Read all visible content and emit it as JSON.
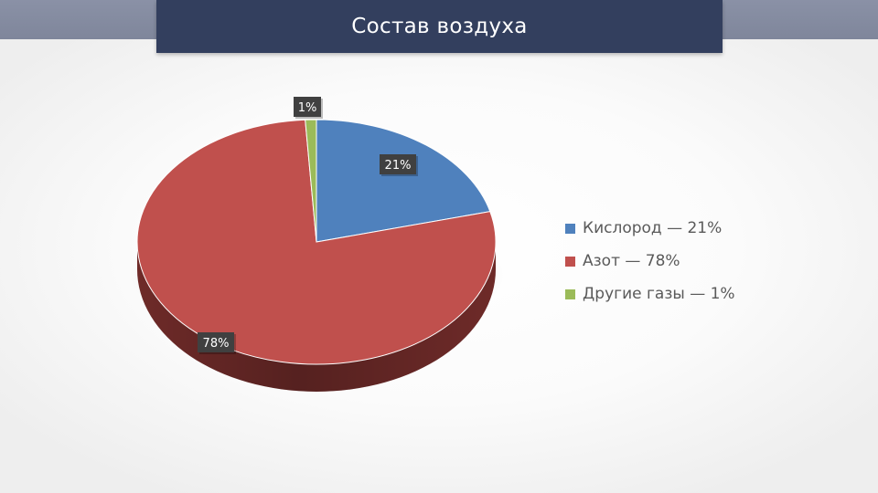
{
  "slide": {
    "title": "Состав воздуха"
  },
  "colors": {
    "band": "#858ca1",
    "title_bg": "#333f5e",
    "label_bg": "#404040"
  },
  "chart_data": {
    "type": "pie",
    "style": "3d",
    "title": "",
    "slices": [
      {
        "label": "Кислород — 21%",
        "value": 21,
        "data_label": "21%",
        "color": "#4f81bd",
        "side_color": "#2f4e75"
      },
      {
        "label": "Азот — 78%",
        "value": 78,
        "data_label": "78%",
        "color": "#c0504d",
        "side_color": "#7a2f2d"
      },
      {
        "label": "Другие газы — 1%",
        "value": 1,
        "data_label": "1%",
        "color": "#9bbb59",
        "side_color": "#5e7335"
      }
    ],
    "legend_position": "right"
  }
}
